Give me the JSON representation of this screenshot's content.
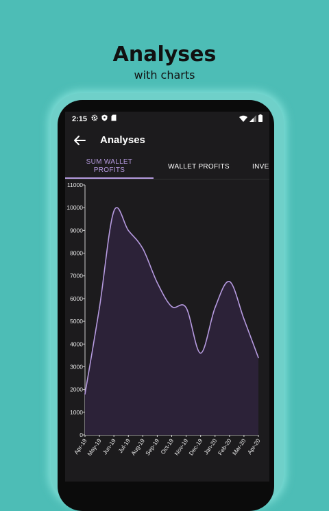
{
  "promo": {
    "title": "Analyses",
    "subtitle": "with charts"
  },
  "statusbar": {
    "time": "2:15",
    "left_icons": [
      "gear-icon",
      "shield-icon",
      "sim-card-icon"
    ],
    "right_icons": [
      "wifi-icon",
      "signal-icon",
      "battery-icon"
    ]
  },
  "appbar": {
    "title": "Analyses",
    "back_icon": "arrow-left-icon"
  },
  "tabs": [
    {
      "label": "SUM WALLET PROFITS",
      "active": true
    },
    {
      "label": "WALLET PROFITS",
      "active": false
    },
    {
      "label": "INVE",
      "active": false
    }
  ],
  "colors": {
    "background": "#4dbdb6",
    "screen": "#1c1b1d",
    "accent": "#b69be0",
    "area_fill": "#2c2238"
  },
  "chart_data": {
    "type": "area",
    "title": "",
    "xlabel": "",
    "ylabel": "",
    "ylim": [
      0,
      11000
    ],
    "yticks": [
      0,
      1000,
      2000,
      3000,
      4000,
      5000,
      6000,
      7000,
      8000,
      9000,
      10000,
      11000
    ],
    "x": [
      "Apr-19",
      "May-19",
      "Jun-19",
      "Jul-19",
      "Aug-19",
      "Sep-19",
      "Oct-19",
      "Nov-19",
      "Dec-19",
      "Jan-20",
      "Feb-20",
      "Mar-20",
      "Apr-20"
    ],
    "series": [
      {
        "values": [
          1800,
          5600,
          9850,
          9000,
          8200,
          6700,
          5650,
          5600,
          3600,
          5600,
          6750,
          5100,
          3400
        ]
      }
    ],
    "grid": false,
    "legend": "none"
  }
}
